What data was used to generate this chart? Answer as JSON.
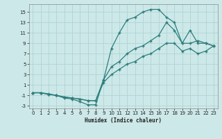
{
  "xlabel": "Humidex (Indice chaleur)",
  "ylabel": "",
  "background_color": "#cde8e8",
  "line_color": "#2e7d7d",
  "grid_color": "#b0d4d4",
  "xlim": [
    -0.5,
    23.5
  ],
  "ylim": [
    -3.5,
    16.5
  ],
  "xticks": [
    0,
    1,
    2,
    3,
    4,
    5,
    6,
    7,
    8,
    9,
    10,
    11,
    12,
    13,
    14,
    15,
    16,
    17,
    18,
    19,
    20,
    21,
    22,
    23
  ],
  "yticks": [
    -3,
    -1,
    1,
    3,
    5,
    7,
    9,
    11,
    13,
    15
  ],
  "line1_x": [
    0,
    1,
    2,
    3,
    4,
    5,
    6,
    7,
    8,
    9,
    10,
    11,
    12,
    13,
    14,
    15,
    16,
    17,
    18,
    19,
    20,
    21,
    22,
    23
  ],
  "line1_y": [
    -0.5,
    -0.5,
    -0.7,
    -1.0,
    -1.5,
    -1.7,
    -2.2,
    -2.8,
    -2.8,
    2.0,
    8.0,
    11.0,
    13.5,
    14.0,
    15.0,
    15.5,
    15.5,
    14.0,
    13.0,
    9.0,
    9.0,
    9.5,
    9.0,
    8.5
  ],
  "line2_x": [
    0,
    1,
    2,
    3,
    4,
    5,
    6,
    7,
    8,
    9,
    10,
    11,
    12,
    13,
    14,
    15,
    16,
    17,
    18,
    19,
    20,
    21,
    22,
    23
  ],
  "line2_y": [
    -0.5,
    -0.5,
    -0.8,
    -1.0,
    -1.3,
    -1.5,
    -1.7,
    -2.0,
    -2.0,
    2.0,
    4.5,
    5.5,
    7.0,
    8.0,
    8.5,
    9.5,
    10.5,
    13.0,
    11.5,
    9.0,
    11.5,
    9.0,
    9.0,
    8.5
  ],
  "line3_x": [
    0,
    1,
    2,
    3,
    4,
    5,
    6,
    7,
    8,
    9,
    10,
    11,
    12,
    13,
    14,
    15,
    16,
    17,
    18,
    19,
    20,
    21,
    22,
    23
  ],
  "line3_y": [
    -0.5,
    -0.5,
    -0.8,
    -1.0,
    -1.3,
    -1.5,
    -1.7,
    -2.0,
    -2.0,
    1.5,
    3.0,
    4.0,
    5.0,
    5.5,
    6.5,
    7.0,
    8.0,
    9.0,
    9.0,
    7.5,
    8.0,
    7.0,
    7.5,
    8.5
  ]
}
